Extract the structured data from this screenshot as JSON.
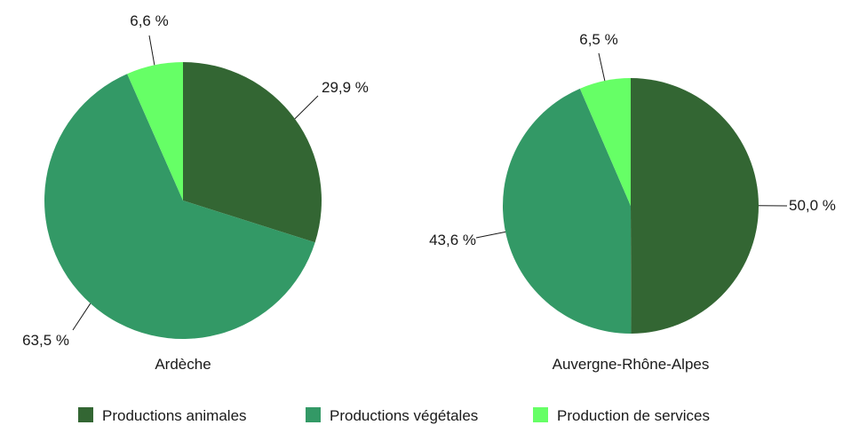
{
  "chart_data": [
    {
      "type": "pie",
      "title": "Ardèche",
      "slices": [
        {
          "name": "Productions animales",
          "value": 29.9,
          "label": "29,9 %"
        },
        {
          "name": "Productions végétales",
          "value": 63.5,
          "label": "63,5 %"
        },
        {
          "name": "Production de services",
          "value": 6.6,
          "label": "6,6 %"
        }
      ]
    },
    {
      "type": "pie",
      "title": "Auvergne-Rhône-Alpes",
      "slices": [
        {
          "name": "Productions animales",
          "value": 50.0,
          "label": "50,0 %"
        },
        {
          "name": "Productions végétales",
          "value": 43.6,
          "label": "43,6 %"
        },
        {
          "name": "Production de services",
          "value": 6.5,
          "label": "6,5 %"
        }
      ]
    }
  ],
  "legend": {
    "placement": "bottom",
    "items": [
      {
        "name": "Productions animales",
        "color": "#336633"
      },
      {
        "name": "Productions végétales",
        "color": "#339966"
      },
      {
        "name": "Production de services",
        "color": "#66ff66"
      }
    ]
  }
}
